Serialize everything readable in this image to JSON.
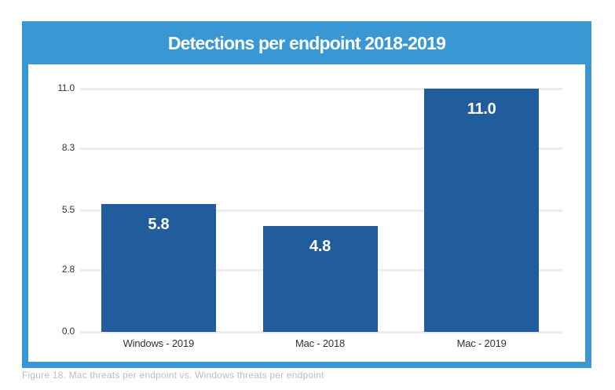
{
  "page": {
    "caption": "Figure 18. Mac threats per endpoint vs. Windows threats per endpoint"
  },
  "panel": {
    "title": "Detections per endpoint 2018-2019",
    "accent_color": "#3998d4"
  },
  "chart_data": {
    "type": "bar",
    "title": "Detections per endpoint 2018-2019",
    "categories": [
      "Windows - 2019",
      "Mac - 2018",
      "Mac - 2019"
    ],
    "values": [
      5.8,
      4.8,
      11.0
    ],
    "value_labels": [
      "5.8",
      "4.8",
      "11.0"
    ],
    "yticks": [
      0.0,
      2.8,
      5.5,
      8.3,
      11.0
    ],
    "ytick_labels": [
      "0.0",
      "2.8",
      "5.5",
      "8.3",
      "11.0"
    ],
    "ylim": [
      0,
      11.0
    ],
    "xlabel": "",
    "ylabel": "",
    "grid": true,
    "legend": false,
    "bar_color": "#215d9c",
    "gridline_color": "#ededed",
    "value_label_color": "#ffffff",
    "axis_label_color": "#333333"
  }
}
